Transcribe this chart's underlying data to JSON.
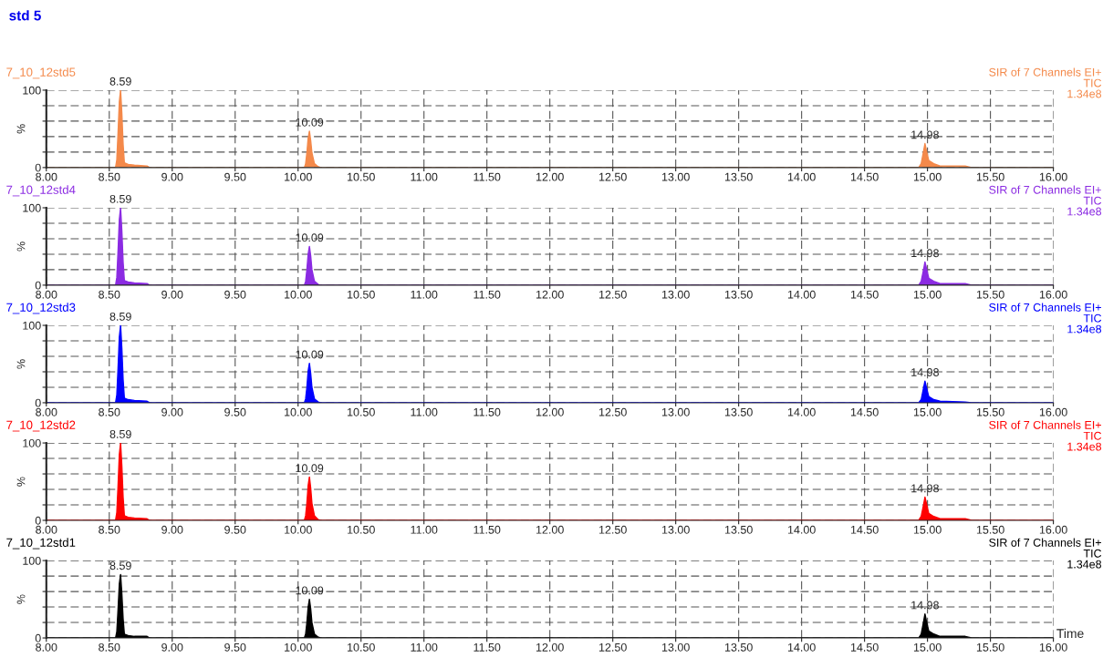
{
  "chart_data": [
    {
      "type": "area",
      "title": "std 5",
      "subtitle": "7_10_12std5",
      "ylabel": "%",
      "x": [
        8.0,
        8.55,
        8.56,
        8.57,
        8.58,
        8.59,
        8.6,
        8.61,
        8.62,
        8.65,
        8.7,
        8.8,
        8.82,
        10.05,
        10.06,
        10.07,
        10.08,
        10.09,
        10.1,
        10.11,
        10.13,
        10.16,
        10.18,
        14.93,
        14.95,
        14.97,
        14.98,
        14.99,
        15.01,
        15.05,
        15.1,
        15.3,
        15.35,
        16.0
      ],
      "series": [
        {
          "color": "#f4894a",
          "values": [
            0,
            0,
            10,
            45,
            85,
            100,
            70,
            30,
            6,
            4,
            3,
            2,
            0,
            0,
            5,
            19,
            38,
            47,
            35,
            19,
            5,
            1,
            0,
            0,
            5,
            22,
            31,
            23,
            9,
            5,
            2,
            2,
            0,
            0
          ]
        }
      ],
      "annotations": [
        {
          "text": "8.59",
          "x": 8.59,
          "y": 100
        },
        {
          "text": "10.09",
          "x": 10.09,
          "y": 47
        },
        {
          "text": "14.98",
          "x": 14.98,
          "y": 31
        },
        "SIR of 7 Channels EI+",
        "TIC",
        "1.34e8"
      ],
      "xlim": [
        8,
        16
      ],
      "xticks": [
        {
          "value": 8,
          "label": "8.00"
        },
        {
          "value": 8.5,
          "label": "8.50"
        },
        {
          "value": 9,
          "label": "9.00"
        },
        {
          "value": 9.5,
          "label": "9.50"
        },
        {
          "value": 10,
          "label": "10.00"
        },
        {
          "value": 10.5,
          "label": "10.50"
        },
        {
          "value": 11,
          "label": "11.00"
        },
        {
          "value": 11.5,
          "label": "11.50"
        },
        {
          "value": 12,
          "label": "12.00"
        },
        {
          "value": 12.5,
          "label": "12.50"
        },
        {
          "value": 13,
          "label": "13.00"
        },
        {
          "value": 13.5,
          "label": "13.50"
        },
        {
          "value": 14,
          "label": "14.00"
        },
        {
          "value": 14.5,
          "label": "14.50"
        },
        {
          "value": 15,
          "label": "15.00"
        },
        {
          "value": 15.5,
          "label": "15.50"
        },
        {
          "value": 16,
          "label": "16.00"
        }
      ],
      "ylim": [
        0,
        100
      ],
      "yticks": [
        0,
        {
          "value": 20,
          "label": null
        },
        {
          "value": 40,
          "label": null
        },
        {
          "value": 60,
          "label": null
        },
        {
          "value": 80,
          "label": null
        },
        100
      ],
      "grid": true
    },
    {
      "type": "area",
      "subtitle": "7_10_12std4",
      "ylabel": "%",
      "x": [
        8.0,
        8.55,
        8.56,
        8.57,
        8.58,
        8.59,
        8.6,
        8.61,
        8.62,
        8.65,
        8.7,
        8.8,
        8.82,
        10.05,
        10.06,
        10.07,
        10.08,
        10.09,
        10.1,
        10.11,
        10.13,
        10.16,
        10.18,
        14.93,
        14.95,
        14.97,
        14.98,
        14.99,
        15.01,
        15.05,
        15.1,
        15.3,
        15.35,
        16.0
      ],
      "series": [
        {
          "color": "#8b2be2",
          "values": [
            0,
            0,
            10,
            45,
            85,
            100,
            70,
            30,
            6,
            4,
            3,
            2,
            0,
            0,
            5,
            20,
            40,
            50,
            38,
            20,
            5,
            1,
            0,
            0,
            5,
            21,
            30,
            23,
            9,
            5,
            2,
            2,
            0,
            0
          ]
        }
      ],
      "annotations": [
        {
          "text": "8.59",
          "x": 8.59,
          "y": 100
        },
        {
          "text": "10.09",
          "x": 10.09,
          "y": 50
        },
        {
          "text": "14.98",
          "x": 14.98,
          "y": 30
        },
        "SIR of 7 Channels EI+",
        "TIC",
        "1.34e8"
      ],
      "xlim": [
        8,
        16
      ],
      "xticks": [
        {
          "value": 8,
          "label": "8.00"
        },
        {
          "value": 8.5,
          "label": "8.50"
        },
        {
          "value": 9,
          "label": "9.00"
        },
        {
          "value": 9.5,
          "label": "9.50"
        },
        {
          "value": 10,
          "label": "10.00"
        },
        {
          "value": 10.5,
          "label": "10.50"
        },
        {
          "value": 11,
          "label": "11.00"
        },
        {
          "value": 11.5,
          "label": "11.50"
        },
        {
          "value": 12,
          "label": "12.00"
        },
        {
          "value": 12.5,
          "label": "12.50"
        },
        {
          "value": 13,
          "label": "13.00"
        },
        {
          "value": 13.5,
          "label": "13.50"
        },
        {
          "value": 14,
          "label": "14.00"
        },
        {
          "value": 14.5,
          "label": "14.50"
        },
        {
          "value": 15,
          "label": "15.00"
        },
        {
          "value": 15.5,
          "label": "15.50"
        },
        {
          "value": 16,
          "label": "16.00"
        }
      ],
      "ylim": [
        0,
        100
      ],
      "yticks": [
        0,
        {
          "value": 20,
          "label": null
        },
        {
          "value": 40,
          "label": null
        },
        {
          "value": 60,
          "label": null
        },
        {
          "value": 80,
          "label": null
        },
        100
      ],
      "grid": true
    },
    {
      "type": "area",
      "subtitle": "7_10_12std3",
      "ylabel": "%",
      "x": [
        8.0,
        8.55,
        8.56,
        8.57,
        8.58,
        8.59,
        8.6,
        8.61,
        8.62,
        8.65,
        8.7,
        8.8,
        8.82,
        10.05,
        10.06,
        10.07,
        10.08,
        10.09,
        10.1,
        10.11,
        10.13,
        10.16,
        10.18,
        14.93,
        14.95,
        14.97,
        14.98,
        14.99,
        15.01,
        15.05,
        15.1,
        15.3,
        15.35,
        16.0
      ],
      "series": [
        {
          "color": "#0000ff",
          "values": [
            0,
            0,
            10,
            45,
            85,
            100,
            70,
            30,
            6,
            4,
            3,
            2,
            0,
            0,
            5,
            20,
            41,
            51,
            38,
            20,
            5,
            1,
            0,
            0,
            4,
            20,
            28,
            21,
            8,
            4,
            2,
            1,
            0,
            0
          ]
        }
      ],
      "annotations": [
        {
          "text": "8.59",
          "x": 8.59,
          "y": 100
        },
        {
          "text": "10.09",
          "x": 10.09,
          "y": 51
        },
        {
          "text": "14.98",
          "x": 14.98,
          "y": 28
        },
        "SIR of 7 Channels EI+",
        "TIC",
        "1.34e8"
      ],
      "xlim": [
        8,
        16
      ],
      "xticks": [
        {
          "value": 8,
          "label": "8.00"
        },
        {
          "value": 8.5,
          "label": "8.50"
        },
        {
          "value": 9,
          "label": "9.00"
        },
        {
          "value": 9.5,
          "label": "9.50"
        },
        {
          "value": 10,
          "label": "10.00"
        },
        {
          "value": 10.5,
          "label": "10.50"
        },
        {
          "value": 11,
          "label": "11.00"
        },
        {
          "value": 11.5,
          "label": "11.50"
        },
        {
          "value": 12,
          "label": "12.00"
        },
        {
          "value": 12.5,
          "label": "12.50"
        },
        {
          "value": 13,
          "label": "13.00"
        },
        {
          "value": 13.5,
          "label": "13.50"
        },
        {
          "value": 14,
          "label": "14.00"
        },
        {
          "value": 14.5,
          "label": "14.50"
        },
        {
          "value": 15,
          "label": "15.00"
        },
        {
          "value": 15.5,
          "label": "15.50"
        },
        {
          "value": 16,
          "label": "16.00"
        }
      ],
      "ylim": [
        0,
        100
      ],
      "yticks": [
        0,
        {
          "value": 20,
          "label": null
        },
        {
          "value": 40,
          "label": null
        },
        {
          "value": 60,
          "label": null
        },
        {
          "value": 80,
          "label": null
        },
        100
      ],
      "grid": true
    },
    {
      "type": "area",
      "subtitle": "7_10_12std2",
      "ylabel": "%",
      "x": [
        8.0,
        8.55,
        8.56,
        8.57,
        8.58,
        8.59,
        8.6,
        8.61,
        8.62,
        8.65,
        8.7,
        8.8,
        8.82,
        10.05,
        10.06,
        10.07,
        10.08,
        10.09,
        10.1,
        10.11,
        10.13,
        10.16,
        10.18,
        14.93,
        14.95,
        14.97,
        14.98,
        14.99,
        15.01,
        15.05,
        15.1,
        15.3,
        15.35,
        16.0
      ],
      "series": [
        {
          "color": "#ff0000",
          "values": [
            0,
            0,
            10,
            45,
            85,
            100,
            70,
            30,
            6,
            4,
            3,
            2,
            0,
            0,
            6,
            22,
            45,
            56,
            42,
            22,
            6,
            1,
            0,
            0,
            5,
            21,
            30,
            23,
            9,
            5,
            2,
            2,
            0,
            0
          ]
        }
      ],
      "annotations": [
        {
          "text": "8.59",
          "x": 8.59,
          "y": 100
        },
        {
          "text": "10.09",
          "x": 10.09,
          "y": 56
        },
        {
          "text": "14.98",
          "x": 14.98,
          "y": 30
        },
        "SIR of 7 Channels EI+",
        "TIC",
        "1.34e8"
      ],
      "xlim": [
        8,
        16
      ],
      "xticks": [
        {
          "value": 8,
          "label": "8.00"
        },
        {
          "value": 8.5,
          "label": "8.50"
        },
        {
          "value": 9,
          "label": "9.00"
        },
        {
          "value": 9.5,
          "label": "9.50"
        },
        {
          "value": 10,
          "label": "10.00"
        },
        {
          "value": 10.5,
          "label": "10.50"
        },
        {
          "value": 11,
          "label": "11.00"
        },
        {
          "value": 11.5,
          "label": "11.50"
        },
        {
          "value": 12,
          "label": "12.00"
        },
        {
          "value": 12.5,
          "label": "12.50"
        },
        {
          "value": 13,
          "label": "13.00"
        },
        {
          "value": 13.5,
          "label": "13.50"
        },
        {
          "value": 14,
          "label": "14.00"
        },
        {
          "value": 14.5,
          "label": "14.50"
        },
        {
          "value": 15,
          "label": "15.00"
        },
        {
          "value": 15.5,
          "label": "15.50"
        },
        {
          "value": 16,
          "label": "16.00"
        }
      ],
      "ylim": [
        0,
        100
      ],
      "yticks": [
        0,
        {
          "value": 20,
          "label": null
        },
        {
          "value": 40,
          "label": null
        },
        {
          "value": 60,
          "label": null
        },
        {
          "value": 80,
          "label": null
        },
        100
      ],
      "grid": true
    },
    {
      "type": "area",
      "subtitle": "7_10_12std1",
      "ylabel": "%",
      "xlabel": "Time",
      "x": [
        8.0,
        8.55,
        8.56,
        8.57,
        8.58,
        8.59,
        8.6,
        8.61,
        8.62,
        8.65,
        8.7,
        8.8,
        8.82,
        10.05,
        10.06,
        10.07,
        10.08,
        10.09,
        10.1,
        10.11,
        10.13,
        10.16,
        10.18,
        14.93,
        14.95,
        14.97,
        14.98,
        14.99,
        15.01,
        15.05,
        15.1,
        15.3,
        15.35,
        16.0
      ],
      "series": [
        {
          "color": "#000000",
          "values": [
            0,
            0,
            8,
            37,
            70,
            82,
            57,
            25,
            5,
            3,
            2,
            2,
            0,
            0,
            5,
            20,
            40,
            50,
            38,
            20,
            5,
            1,
            0,
            0,
            5,
            22,
            31,
            23,
            9,
            5,
            2,
            2,
            0,
            0
          ]
        }
      ],
      "annotations": [
        {
          "text": "8.59",
          "x": 8.59,
          "y": 82
        },
        {
          "text": "10.09",
          "x": 10.09,
          "y": 50
        },
        {
          "text": "14.98",
          "x": 14.98,
          "y": 31
        },
        "SIR of 7 Channels EI+",
        "TIC",
        "1.34e8"
      ],
      "xlim": [
        8,
        16
      ],
      "xticks": [
        {
          "value": 8,
          "label": "8.00"
        },
        {
          "value": 8.5,
          "label": "8.50"
        },
        {
          "value": 9,
          "label": "9.00"
        },
        {
          "value": 9.5,
          "label": "9.50"
        },
        {
          "value": 10,
          "label": "10.00"
        },
        {
          "value": 10.5,
          "label": "10.50"
        },
        {
          "value": 11,
          "label": "11.00"
        },
        {
          "value": 11.5,
          "label": "11.50"
        },
        {
          "value": 12,
          "label": "12.00"
        },
        {
          "value": 12.5,
          "label": "12.50"
        },
        {
          "value": 13,
          "label": "13.00"
        },
        {
          "value": 13.5,
          "label": "13.50"
        },
        {
          "value": 14,
          "label": "14.00"
        },
        {
          "value": 14.5,
          "label": "14.50"
        },
        {
          "value": 15,
          "label": "15.00"
        },
        {
          "value": 15.5,
          "label": "15.50"
        },
        {
          "value": 16,
          "label": "16.00"
        }
      ],
      "ylim": [
        0,
        100
      ],
      "yticks": [
        0,
        {
          "value": 20,
          "label": null
        },
        {
          "value": 40,
          "label": null
        },
        {
          "value": 60,
          "label": null
        },
        {
          "value": 80,
          "label": null
        },
        100
      ],
      "grid": true
    }
  ]
}
